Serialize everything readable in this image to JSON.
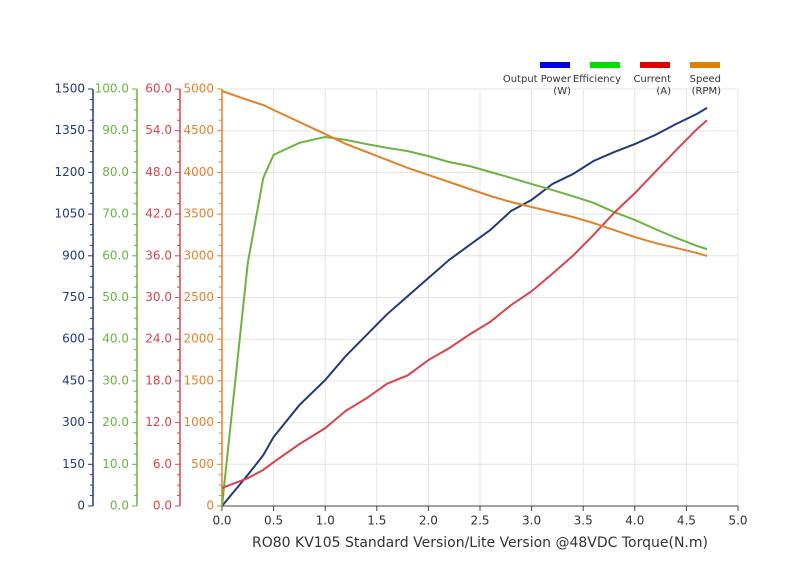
{
  "chart_data": {
    "type": "line",
    "x_label": "RO80 KV105 Standard Version/Lite Version @48VDC Torque(N.m)",
    "x": [
      0,
      0.25,
      0.4,
      0.5,
      0.75,
      1.0,
      1.2,
      1.4,
      1.6,
      1.8,
      2.0,
      2.2,
      2.4,
      2.6,
      2.8,
      3.0,
      3.2,
      3.4,
      3.6,
      3.8,
      4.0,
      4.2,
      4.4,
      4.6,
      4.7
    ],
    "xlim": [
      0,
      5
    ],
    "xticks": [
      {
        "value": 0,
        "label": "0.0"
      },
      {
        "value": 0.5,
        "label": "0.5"
      },
      {
        "value": 1,
        "label": "1.0"
      },
      {
        "value": 1.5,
        "label": "1.5"
      },
      {
        "value": 2,
        "label": "2.0"
      },
      {
        "value": 2.5,
        "label": "2.5"
      },
      {
        "value": 3,
        "label": "3.0"
      },
      {
        "value": 3.5,
        "label": "3.5"
      },
      {
        "value": 4,
        "label": "4.0"
      },
      {
        "value": 4.5,
        "label": "4.5"
      },
      {
        "value": 5,
        "label": "5.0"
      }
    ],
    "grid": true,
    "series": [
      {
        "name": "Output Power",
        "unit": "(W)",
        "color": "#24397a",
        "legend_color": "#0000e0",
        "ylim": [
          0,
          1500
        ],
        "yticks": [
          0,
          150,
          300,
          450,
          600,
          750,
          900,
          1050,
          1200,
          1350,
          1500
        ],
        "values": [
          0,
          112,
          183,
          248,
          363,
          453,
          540,
          615,
          690,
          755,
          820,
          885,
          939,
          993,
          1061,
          1101,
          1158,
          1194,
          1241,
          1273,
          1302,
          1335,
          1374,
          1410,
          1432
        ]
      },
      {
        "name": "Efficiency",
        "color": "#6cb33f",
        "legend_color": "#00e000",
        "ylim": [
          0,
          100
        ],
        "yticks": [
          {
            "value": 0,
            "label": "0.0"
          },
          {
            "value": 10,
            "label": "10.0"
          },
          {
            "value": 20,
            "label": "20.0"
          },
          {
            "value": 30,
            "label": "30.0"
          },
          {
            "value": 40,
            "label": "40.0"
          },
          {
            "value": 50,
            "label": "50.0"
          },
          {
            "value": 60,
            "label": "60.0"
          },
          {
            "value": 70,
            "label": "70.0"
          },
          {
            "value": 80,
            "label": "80.0"
          },
          {
            "value": 90,
            "label": "90.0"
          },
          {
            "value": 100,
            "label": "100.0"
          }
        ],
        "values": [
          0,
          58.3,
          78.7,
          84.2,
          87.1,
          88.5,
          87.8,
          86.8,
          85.9,
          85.1,
          83.9,
          82.5,
          81.5,
          80.1,
          78.7,
          77.2,
          75.8,
          74.3,
          72.7,
          70.5,
          68.6,
          66.4,
          64.3,
          62.4,
          61.6
        ]
      },
      {
        "name": "Current",
        "unit": "(A)",
        "color": "#d8434f",
        "legend_color": "#e00000",
        "ylim": [
          0,
          60
        ],
        "yticks": [
          {
            "value": 0,
            "label": "0.0"
          },
          {
            "value": 6,
            "label": "6.0"
          },
          {
            "value": 12,
            "label": "12.0"
          },
          {
            "value": 18,
            "label": "18.0"
          },
          {
            "value": 24,
            "label": "24.0"
          },
          {
            "value": 30,
            "label": "30.0"
          },
          {
            "value": 36,
            "label": "36.0"
          },
          {
            "value": 42,
            "label": "42.0"
          },
          {
            "value": 48,
            "label": "48.0"
          },
          {
            "value": 54,
            "label": "54.0"
          },
          {
            "value": 60,
            "label": "60.0"
          }
        ],
        "values": [
          2.6,
          4.0,
          5.2,
          6.3,
          8.9,
          11.2,
          13.7,
          15.5,
          17.6,
          18.8,
          21.0,
          22.7,
          24.7,
          26.5,
          28.9,
          30.9,
          33.4,
          36.0,
          39.0,
          42.2,
          45.0,
          48.1,
          51.2,
          54.2,
          55.5
        ]
      },
      {
        "name": "Speed",
        "unit": "(RPM)",
        "color": "#e0822a",
        "legend_color": "#e08000",
        "ylim": [
          0,
          5000
        ],
        "yticks": [
          0,
          500,
          1000,
          1500,
          2000,
          2500,
          3000,
          3500,
          4000,
          4500,
          5000
        ],
        "values": [
          4976,
          4868,
          4808,
          4748,
          4604,
          4460,
          4341,
          4245,
          4149,
          4053,
          3969,
          3885,
          3801,
          3717,
          3645,
          3585,
          3525,
          3465,
          3393,
          3309,
          3225,
          3153,
          3094,
          3034,
          2998
        ]
      }
    ]
  }
}
